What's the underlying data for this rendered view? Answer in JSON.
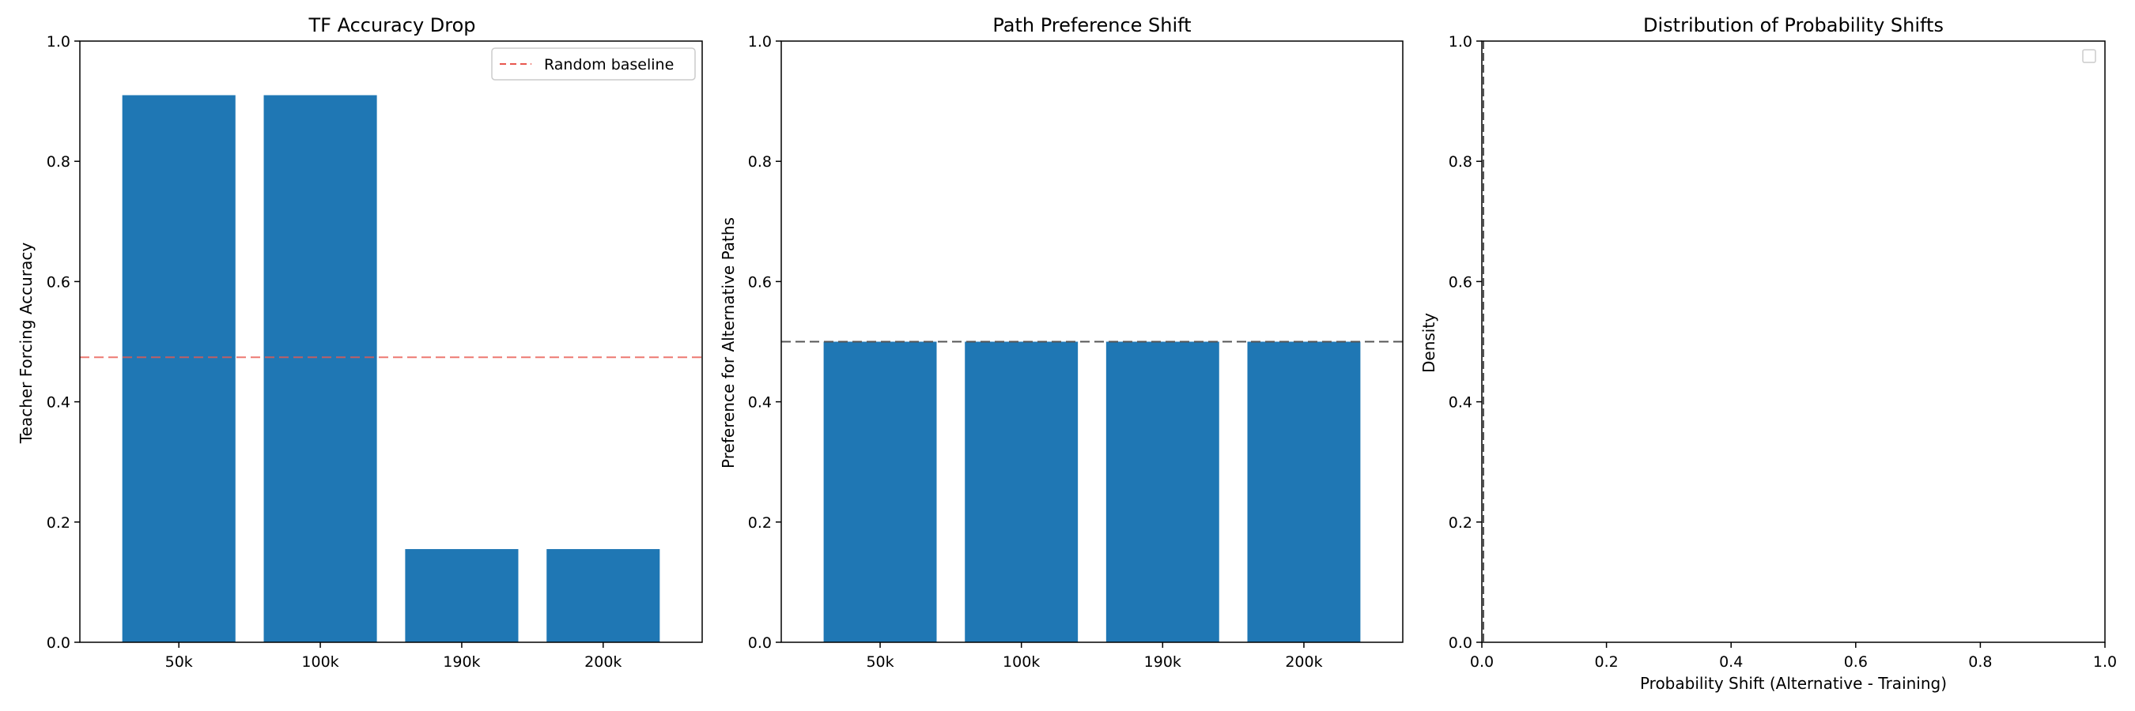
{
  "chart_data": [
    {
      "type": "bar",
      "title": "TF Accuracy Drop",
      "xlabel": "",
      "ylabel": "Teacher Forcing Accuracy",
      "categories": [
        "50k",
        "100k",
        "190k",
        "200k"
      ],
      "values": [
        0.91,
        0.91,
        0.155,
        0.155
      ],
      "ylim": [
        0,
        1
      ],
      "yticks": [
        "0.0",
        "0.2",
        "0.4",
        "0.6",
        "0.8",
        "1.0"
      ],
      "bar_color": "#1f77b4",
      "reference_line": {
        "y": 0.474,
        "style": "dashed",
        "color": "#e8574f",
        "label": "Random baseline"
      },
      "legend": {
        "position": "top-right",
        "entries": [
          "Random baseline"
        ]
      },
      "grid": false
    },
    {
      "type": "bar",
      "title": "Path Preference Shift",
      "xlabel": "",
      "ylabel": "Preference for Alternative Paths",
      "categories": [
        "50k",
        "100k",
        "190k",
        "200k"
      ],
      "values": [
        0.5,
        0.5,
        0.5,
        0.5
      ],
      "ylim": [
        0,
        1
      ],
      "yticks": [
        "0.0",
        "0.2",
        "0.4",
        "0.6",
        "0.8",
        "1.0"
      ],
      "bar_color": "#1f77b4",
      "reference_line": {
        "y": 0.5,
        "style": "dashed",
        "color": "#555555"
      },
      "grid": false
    },
    {
      "type": "area",
      "title": "Distribution of Probability Shifts",
      "xlabel": "Probability Shift (Alternative - Training)",
      "ylabel": "Density",
      "xlim": [
        0,
        1
      ],
      "ylim": [
        0,
        1
      ],
      "xticks": [
        "0.0",
        "0.2",
        "0.4",
        "0.6",
        "0.8",
        "1.0"
      ],
      "yticks": [
        "0.0",
        "0.2",
        "0.4",
        "0.6",
        "0.8",
        "1.0"
      ],
      "series": [],
      "reference_line": {
        "x": 0,
        "style": "dashed",
        "color": "#555555"
      },
      "legend": {
        "position": "top-right",
        "entries": []
      },
      "grid": false
    }
  ]
}
